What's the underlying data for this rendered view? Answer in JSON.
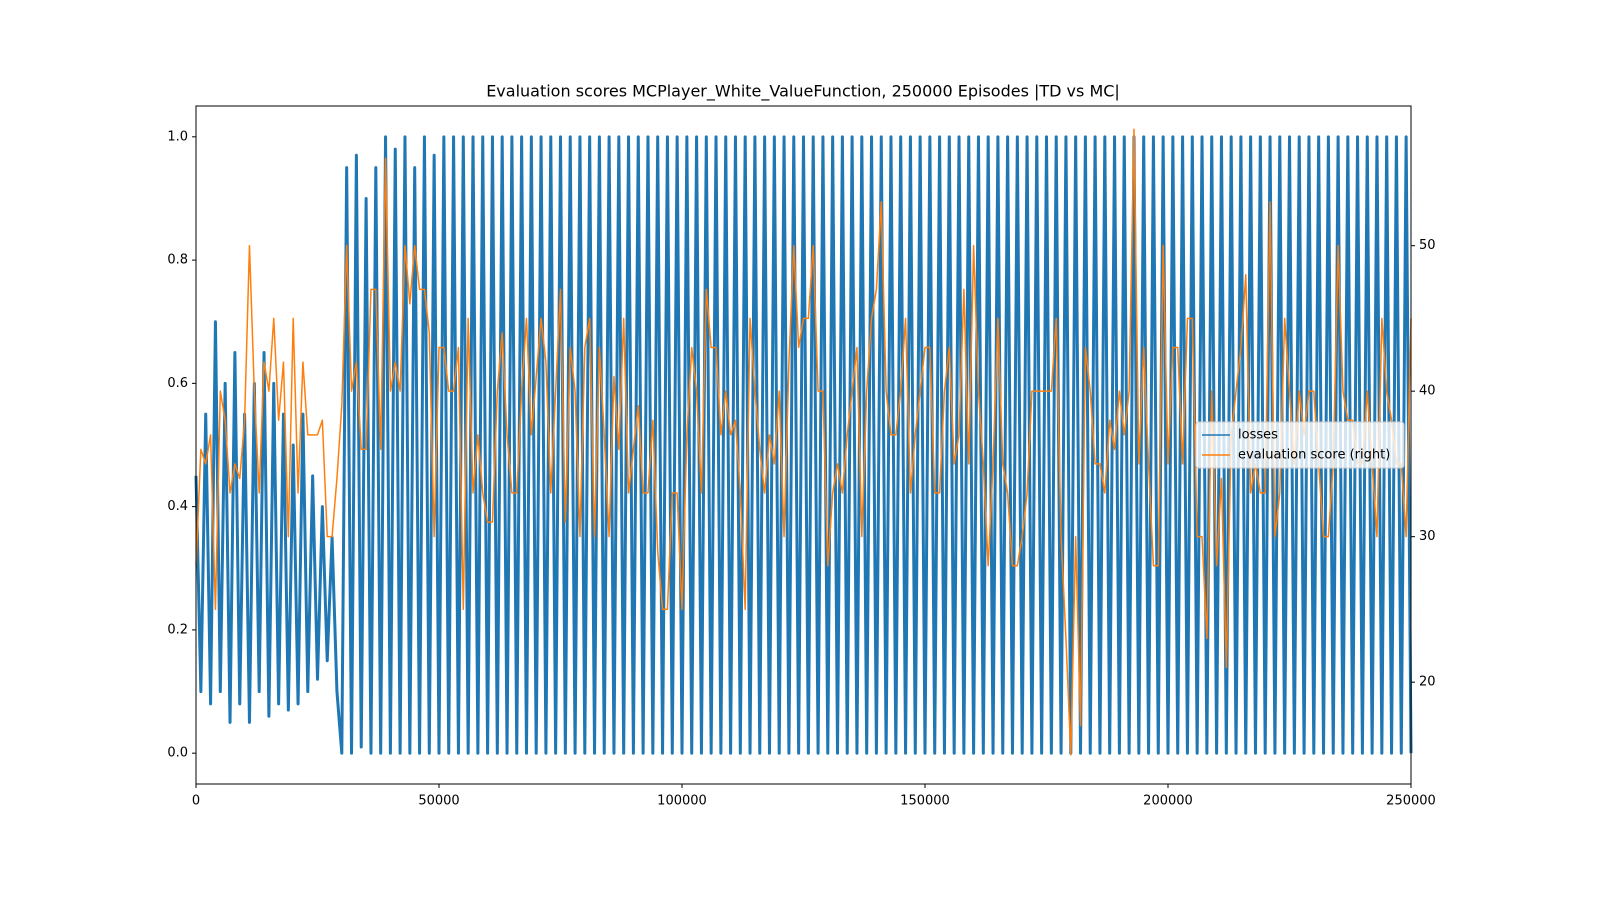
{
  "chart_data": {
    "type": "line",
    "title": "Evaluation scores MCPlayer_White_ValueFunction, 250000 Episodes |TD vs MC|",
    "x": [
      0,
      1000,
      2000,
      3000,
      4000,
      5000,
      6000,
      7000,
      8000,
      9000,
      10000,
      11000,
      12000,
      13000,
      14000,
      15000,
      16000,
      17000,
      18000,
      19000,
      20000,
      21000,
      22000,
      23000,
      24000,
      25000,
      26000,
      27000,
      28000,
      29000,
      30000,
      31000,
      32000,
      33000,
      34000,
      35000,
      36000,
      37000,
      38000,
      39000,
      40000,
      41000,
      42000,
      43000,
      44000,
      45000,
      46000,
      47000,
      48000,
      49000,
      50000,
      51000,
      52000,
      53000,
      54000,
      55000,
      56000,
      57000,
      58000,
      59000,
      60000,
      61000,
      62000,
      63000,
      64000,
      65000,
      66000,
      67000,
      68000,
      69000,
      70000,
      71000,
      72000,
      73000,
      74000,
      75000,
      76000,
      77000,
      78000,
      79000,
      80000,
      81000,
      82000,
      83000,
      84000,
      85000,
      86000,
      87000,
      88000,
      89000,
      90000,
      91000,
      92000,
      93000,
      94000,
      95000,
      96000,
      97000,
      98000,
      99000,
      100000,
      101000,
      102000,
      103000,
      104000,
      105000,
      106000,
      107000,
      108000,
      109000,
      110000,
      111000,
      112000,
      113000,
      114000,
      115000,
      116000,
      117000,
      118000,
      119000,
      120000,
      121000,
      122000,
      123000,
      124000,
      125000,
      126000,
      127000,
      128000,
      129000,
      130000,
      131000,
      132000,
      133000,
      134000,
      135000,
      136000,
      137000,
      138000,
      139000,
      140000,
      141000,
      142000,
      143000,
      144000,
      145000,
      146000,
      147000,
      148000,
      149000,
      150000,
      151000,
      152000,
      153000,
      154000,
      155000,
      156000,
      157000,
      158000,
      159000,
      160000,
      161000,
      162000,
      163000,
      164000,
      165000,
      166000,
      167000,
      168000,
      169000,
      170000,
      171000,
      172000,
      173000,
      174000,
      175000,
      176000,
      177000,
      178000,
      179000,
      180000,
      181000,
      182000,
      183000,
      184000,
      185000,
      186000,
      187000,
      188000,
      189000,
      190000,
      191000,
      192000,
      193000,
      194000,
      195000,
      196000,
      197000,
      198000,
      199000,
      200000,
      201000,
      202000,
      203000,
      204000,
      205000,
      206000,
      207000,
      208000,
      209000,
      210000,
      211000,
      212000,
      213000,
      214000,
      215000,
      216000,
      217000,
      218000,
      219000,
      220000,
      221000,
      222000,
      223000,
      224000,
      225000,
      226000,
      227000,
      228000,
      229000,
      230000,
      231000,
      232000,
      233000,
      234000,
      235000,
      236000,
      237000,
      238000,
      239000,
      240000,
      241000,
      242000,
      243000,
      244000,
      245000,
      246000,
      247000,
      248000,
      249000,
      250000
    ],
    "series": [
      {
        "name": "losses",
        "color": "#1f77b4",
        "values": [
          0.45,
          0.1,
          0.55,
          0.08,
          0.7,
          0.1,
          0.6,
          0.05,
          0.65,
          0.08,
          0.55,
          0.05,
          0.6,
          0.1,
          0.65,
          0.06,
          0.6,
          0.08,
          0.55,
          0.07,
          0.5,
          0.08,
          0.55,
          0.1,
          0.45,
          0.12,
          0.4,
          0.15,
          0.35,
          0.1,
          0.0,
          0.95,
          0.0,
          0.97,
          0.01,
          0.9,
          0.0,
          0.95,
          0.0,
          1.0,
          0.0,
          0.98,
          0.0,
          1.0,
          0.0,
          0.95,
          0.0,
          1.0,
          0.0,
          0.97,
          0.0,
          1.0,
          0,
          1,
          0,
          1,
          0,
          1,
          0,
          1,
          0,
          1,
          0,
          1,
          0,
          1,
          0,
          1,
          0,
          1,
          0,
          1,
          0,
          1,
          0,
          1,
          0,
          1,
          0,
          1,
          0,
          1,
          0,
          1,
          0,
          1,
          0,
          1,
          0,
          1,
          0,
          1,
          0,
          1,
          0,
          1,
          0,
          1,
          0,
          1,
          0,
          1,
          0,
          1,
          0,
          1,
          0,
          1,
          0,
          1,
          0,
          1,
          0,
          1,
          0,
          1,
          0,
          1,
          0,
          1,
          0,
          1,
          0,
          1,
          0,
          1,
          0,
          1,
          0,
          1,
          0,
          1,
          0,
          1,
          0,
          1,
          0,
          1,
          0,
          1,
          0,
          1,
          0,
          1,
          0,
          1,
          0,
          1,
          0,
          1,
          0,
          1,
          0,
          1,
          0,
          1,
          0,
          1,
          0,
          1,
          0,
          1,
          0,
          1,
          0,
          1,
          0,
          1,
          0,
          1,
          0,
          1,
          0,
          1,
          0,
          1,
          0,
          1,
          0,
          1,
          0,
          1,
          0,
          1,
          0,
          1,
          0,
          1,
          0,
          1,
          0,
          1,
          0,
          1,
          0,
          1,
          0,
          1,
          0,
          1,
          0,
          1,
          0,
          1,
          0,
          1,
          0,
          1,
          0,
          1,
          0,
          1,
          0,
          1,
          0,
          1,
          0,
          1,
          0,
          1,
          0,
          1,
          0,
          1,
          0,
          1,
          0,
          1,
          0,
          1,
          0,
          1,
          0,
          1,
          0,
          1,
          0,
          1,
          0,
          1,
          0,
          1,
          0,
          1,
          0,
          1,
          0,
          1,
          0,
          1,
          0
        ]
      },
      {
        "name": "evaluation score (right)",
        "color": "#ff7f0e",
        "axis": "y2",
        "values": [
          28,
          36,
          35,
          37,
          25,
          40,
          38,
          33,
          35,
          34,
          38,
          50,
          40,
          33,
          42,
          40,
          45,
          38,
          42,
          30,
          45,
          33,
          42,
          37,
          37,
          37,
          38,
          30,
          30,
          34,
          39,
          50,
          40,
          42,
          36,
          36,
          47,
          47,
          36,
          56,
          40,
          42,
          40,
          50,
          46,
          50,
          47,
          47,
          44,
          30,
          43,
          43,
          40,
          40,
          43,
          25,
          45,
          33,
          37,
          33,
          31,
          31,
          40,
          44,
          37,
          33,
          33,
          40,
          45,
          37,
          41,
          45,
          42,
          33,
          40,
          47,
          31,
          43,
          40,
          30,
          43,
          45,
          30,
          43,
          37,
          30,
          41,
          36,
          45,
          33,
          36,
          39,
          33,
          33,
          38,
          29,
          25,
          25,
          33,
          33,
          25,
          37,
          43,
          40,
          33,
          47,
          43,
          43,
          37,
          40,
          37,
          38,
          33,
          25,
          45,
          40,
          36,
          33,
          37,
          35,
          40,
          30,
          42,
          50,
          43,
          45,
          45,
          50,
          40,
          40,
          28,
          33,
          35,
          33,
          37,
          40,
          43,
          30,
          40,
          45,
          47,
          53,
          40,
          37,
          37,
          40,
          45,
          33,
          37,
          40,
          43,
          43,
          33,
          33,
          40,
          43,
          35,
          37,
          47,
          35,
          50,
          40,
          35,
          28,
          35,
          45,
          35,
          33,
          28,
          28,
          30,
          33,
          40,
          40,
          40,
          40,
          40,
          45,
          30,
          23,
          15,
          30,
          17,
          43,
          40,
          35,
          35,
          33,
          38,
          36,
          40,
          37,
          40,
          58,
          35,
          43,
          35,
          28,
          28,
          50,
          35,
          43,
          43,
          35,
          45,
          45,
          30,
          30,
          23,
          40,
          28,
          34,
          21,
          37,
          40,
          43,
          48,
          33,
          35,
          33,
          33,
          53,
          30,
          33,
          45,
          40,
          35,
          40,
          37,
          40,
          40,
          35,
          30,
          30,
          35,
          50,
          40,
          38,
          38,
          35,
          35,
          40,
          35,
          30,
          45,
          40,
          38,
          35,
          35,
          30,
          45
        ]
      }
    ],
    "xlim": [
      0,
      250000
    ],
    "xticks": [
      0,
      50000,
      100000,
      150000,
      200000,
      250000
    ],
    "ylim": [
      -0.05,
      1.05
    ],
    "yticks": [
      {
        "value": 0,
        "label": "0.0"
      },
      0.2,
      0.4,
      0.6,
      0.8,
      {
        "value": 1,
        "label": "1.0"
      }
    ],
    "y2lim": [
      13,
      59.6
    ],
    "y2ticks": [
      20,
      30,
      40,
      50
    ],
    "legend": "center right"
  }
}
